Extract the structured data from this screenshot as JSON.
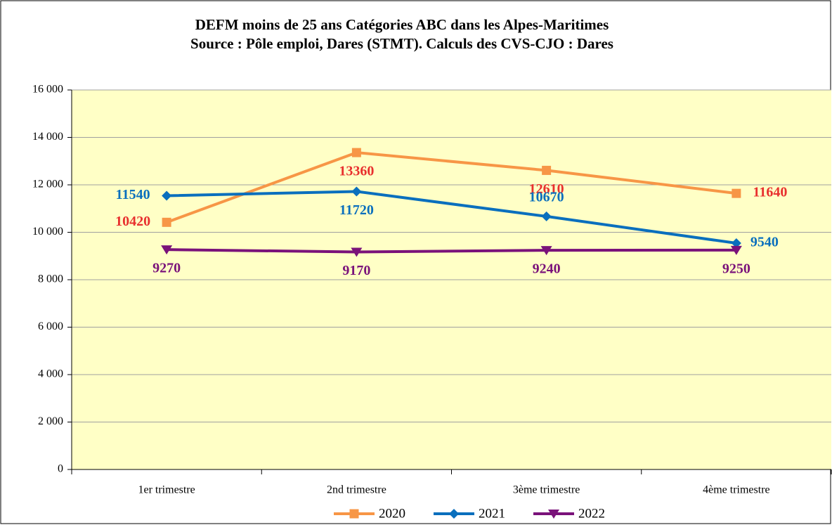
{
  "chart_data": {
    "type": "line",
    "title": "DEFM moins de 25 ans  Catégories ABC dans les Alpes-Maritimes",
    "subtitle": "Source : Pôle emploi, Dares (STMT). Calculs des CVS-CJO : Dares",
    "categories": [
      "1er trimestre",
      "2nd  trimestre",
      "3ème trimestre",
      "4ème trimestre"
    ],
    "series": [
      {
        "name": "2020",
        "color": "#f79646",
        "label_color": "#e8302e",
        "marker": "square",
        "values": [
          10420,
          13360,
          12610,
          11640
        ]
      },
      {
        "name": "2021",
        "color": "#0a6fbd",
        "label_color": "#0a6fbd",
        "marker": "diamond",
        "values": [
          11540,
          11720,
          10670,
          9540
        ]
      },
      {
        "name": "2022",
        "color": "#7a127a",
        "label_color": "#7a127a",
        "marker": "triangle-down",
        "values": [
          9270,
          9170,
          9240,
          9250
        ]
      }
    ],
    "ylim": [
      0,
      16000
    ],
    "yticks": [
      0,
      {
        "value": 2000,
        "label": "2 000"
      },
      {
        "value": 4000,
        "label": "4 000"
      },
      {
        "value": 6000,
        "label": "6 000"
      },
      {
        "value": 8000,
        "label": "8 000"
      },
      {
        "value": 10000,
        "label": "10 000"
      },
      {
        "value": 12000,
        "label": "12 000"
      },
      {
        "value": 14000,
        "label": "14 000"
      },
      {
        "value": 16000,
        "label": "16 000"
      }
    ],
    "grid": true,
    "legend": "bottom"
  }
}
